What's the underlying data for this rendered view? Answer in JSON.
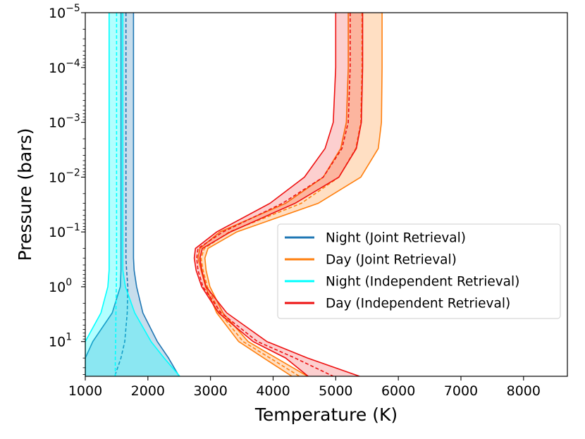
{
  "chart_data": {
    "type": "line",
    "title": "",
    "xlabel": "Temperature (K)",
    "ylabel": "Pressure (bars)",
    "xlim": [
      1000,
      8700
    ],
    "ylim_bars": [
      1e-05,
      43
    ],
    "y_scale": "log",
    "y_inverted": true,
    "grid": false,
    "legend_position": "center-right",
    "x_ticks": [
      {
        "value": 1000,
        "label": "1000"
      },
      {
        "value": 2000,
        "label": "2000"
      },
      {
        "value": 3000,
        "label": "3000"
      },
      {
        "value": 4000,
        "label": "4000"
      },
      {
        "value": 5000,
        "label": "5000"
      },
      {
        "value": 6000,
        "label": "6000"
      },
      {
        "value": 7000,
        "label": "7000"
      },
      {
        "value": 8000,
        "label": "8000"
      }
    ],
    "y_ticks": [
      {
        "value": 1e-05,
        "base": "10",
        "exp": "−5"
      },
      {
        "value": 0.0001,
        "base": "10",
        "exp": "−4"
      },
      {
        "value": 0.001,
        "base": "10",
        "exp": "−3"
      },
      {
        "value": 0.01,
        "base": "10",
        "exp": "−2"
      },
      {
        "value": 0.1,
        "base": "10",
        "exp": "−1"
      },
      {
        "value": 1,
        "base": "10",
        "exp": "0"
      },
      {
        "value": 10,
        "base": "10",
        "exp": "1"
      }
    ],
    "pressure_bars": [
      1e-05,
      0.0001,
      0.001,
      0.003,
      0.01,
      0.03,
      0.1,
      0.2,
      0.3,
      0.5,
      1,
      3,
      10,
      20,
      43
    ],
    "series": [
      {
        "name": "Night (Joint Retrieval)",
        "color": "#1f77b4",
        "fill_opacity": 0.25,
        "median": [
          1650,
          1650,
          1650,
          1650,
          1650,
          1650,
          1650,
          1650,
          1650,
          1660,
          1680,
          1670,
          1630,
          1570,
          1470
        ],
        "lower": [
          1570,
          1570,
          1570,
          1570,
          1570,
          1570,
          1570,
          1570,
          1570,
          1570,
          1560,
          1430,
          1120,
          1000,
          1000
        ],
        "upper": [
          1770,
          1770,
          1770,
          1770,
          1770,
          1770,
          1770,
          1770,
          1770,
          1780,
          1820,
          1920,
          2150,
          2330,
          2500
        ]
      },
      {
        "name": "Day (Joint Retrieval)",
        "color": "#ff7f0e",
        "fill_opacity": 0.25,
        "median": [
          5420,
          5420,
          5400,
          5320,
          5050,
          4450,
          3300,
          2900,
          2850,
          2880,
          2950,
          3150,
          3520,
          3950,
          4420
        ],
        "lower": [
          5200,
          5200,
          5170,
          5080,
          4800,
          4200,
          3150,
          2830,
          2800,
          2850,
          2920,
          3100,
          3450,
          3850,
          4300
        ],
        "upper": [
          5740,
          5740,
          5730,
          5680,
          5400,
          4720,
          3420,
          2960,
          2910,
          2930,
          2990,
          3200,
          3600,
          4050,
          4550
        ]
      },
      {
        "name": "Night (Independent Retrieval)",
        "color": "#00ffff",
        "fill_opacity": 0.3,
        "median": [
          1500,
          1500,
          1500,
          1500,
          1500,
          1500,
          1500,
          1500,
          1500,
          1500,
          1495,
          1490,
          1485,
          1480,
          1480
        ],
        "lower": [
          1380,
          1380,
          1380,
          1380,
          1380,
          1380,
          1380,
          1380,
          1380,
          1380,
          1360,
          1250,
          1000,
          1000,
          1000
        ],
        "upper": [
          1600,
          1600,
          1600,
          1600,
          1600,
          1600,
          1600,
          1600,
          1600,
          1600,
          1640,
          1790,
          2050,
          2260,
          2510
        ]
      },
      {
        "name": "Day (Independent Retrieval)",
        "color": "#ee1111",
        "fill_opacity": 0.2,
        "median": [
          5230,
          5230,
          5200,
          5100,
          4800,
          4150,
          3200,
          2800,
          2780,
          2800,
          2880,
          3170,
          3750,
          4350,
          4960
        ],
        "lower": [
          5000,
          5000,
          4960,
          4830,
          4500,
          3950,
          3100,
          2760,
          2740,
          2770,
          2860,
          3130,
          3680,
          4200,
          4560
        ],
        "upper": [
          5430,
          5430,
          5410,
          5330,
          5050,
          4350,
          3320,
          2870,
          2830,
          2860,
          2930,
          3260,
          3900,
          4550,
          5380
        ]
      }
    ]
  }
}
